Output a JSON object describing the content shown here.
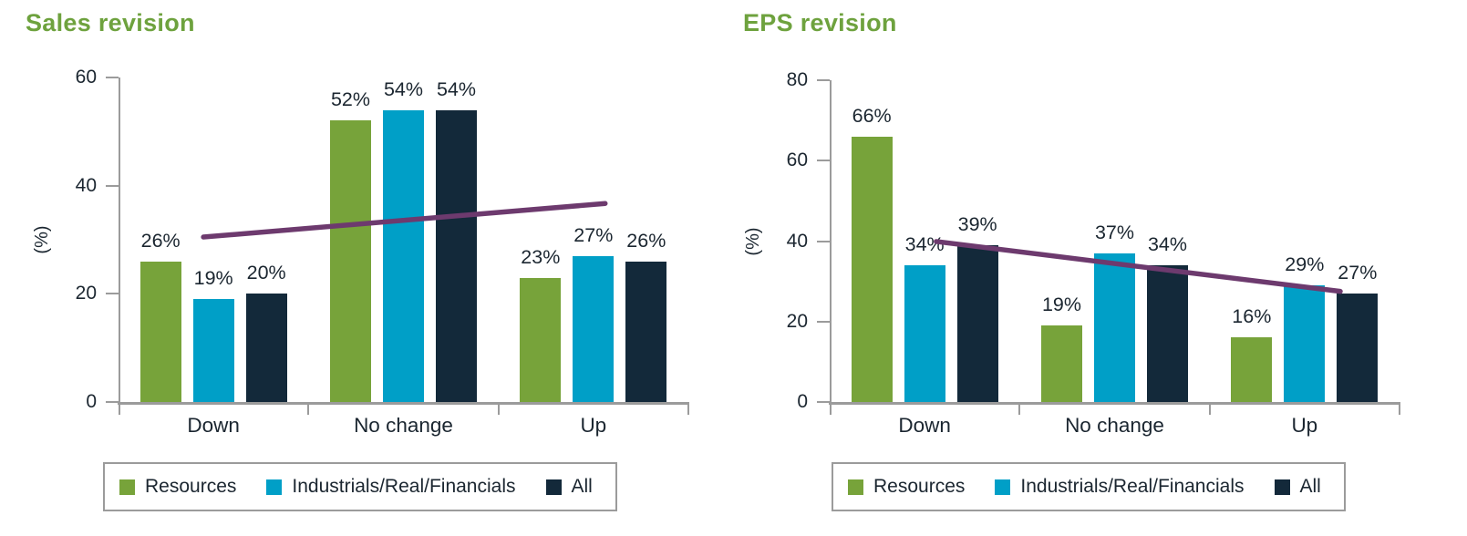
{
  "figure": {
    "background": "#ffffff"
  },
  "colors": {
    "title_green": "#6ea23e",
    "axis_gray": "#9b9b9b",
    "legend_border": "#9b9b9b",
    "label_text": "#1b2630",
    "resources_green": "#77a33a",
    "industrials_blue": "#009fc7",
    "all_navy": "#13293a",
    "trend_purple": "#6d3a6e"
  },
  "legend": {
    "items": [
      {
        "label": "Resources",
        "color": "#77a33a"
      },
      {
        "label": "Industrials/Real/Financials",
        "color": "#009fc7"
      },
      {
        "label": "All",
        "color": "#13293a"
      }
    ]
  },
  "chart_data": [
    {
      "type": "bar",
      "title": "Sales revision",
      "xlabel": "",
      "ylabel": "(%)",
      "ylim": [
        0,
        60
      ],
      "yticks": [
        0,
        20,
        40,
        60
      ],
      "grid": false,
      "legend_position": "bottom",
      "value_label_suffix": "%",
      "categories": [
        "Down",
        "No change",
        "Up"
      ],
      "series": [
        {
          "name": "Resources",
          "color": "#77a33a",
          "values": [
            26,
            52,
            23
          ]
        },
        {
          "name": "Industrials/Real/Financials",
          "color": "#009fc7",
          "values": [
            19,
            54,
            27
          ]
        },
        {
          "name": "All",
          "color": "#13293a",
          "values": [
            20,
            54,
            26
          ]
        }
      ],
      "trend_line": {
        "color": "#6d3a6e",
        "points": [
          {
            "x_frac": 0.149,
            "value": 30.5
          },
          {
            "x_frac": 0.854,
            "value": 36.7
          }
        ]
      }
    },
    {
      "type": "bar",
      "title": "EPS revision",
      "xlabel": "",
      "ylabel": "(%)",
      "ylim": [
        0,
        80
      ],
      "yticks": [
        0,
        20,
        40,
        60,
        80
      ],
      "grid": false,
      "legend_position": "bottom",
      "value_label_suffix": "%",
      "categories": [
        "Down",
        "No change",
        "Up"
      ],
      "series": [
        {
          "name": "Resources",
          "color": "#77a33a",
          "values": [
            66,
            19,
            16
          ]
        },
        {
          "name": "Industrials/Real/Financials",
          "color": "#009fc7",
          "values": [
            34,
            37,
            29
          ]
        },
        {
          "name": "All",
          "color": "#13293a",
          "values": [
            39,
            34,
            27
          ]
        }
      ],
      "trend_line": {
        "color": "#6d3a6e",
        "points": [
          {
            "x_frac": 0.187,
            "value": 39.9
          },
          {
            "x_frac": 0.896,
            "value": 27.5
          }
        ]
      }
    }
  ]
}
